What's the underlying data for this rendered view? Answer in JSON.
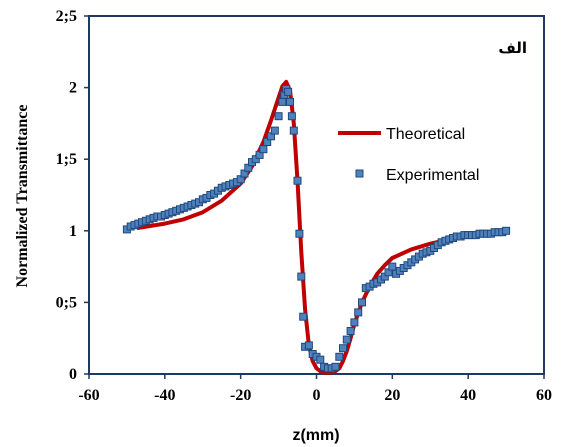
{
  "chart_data": {
    "type": "scatter",
    "panel_label": "الف",
    "xlabel": "z(mm)",
    "ylabel": "Normalized Transmittance",
    "xlim": [
      -60,
      60
    ],
    "ylim": [
      0,
      2.5
    ],
    "x_ticks": [
      -60,
      -40,
      -20,
      0,
      20,
      40,
      60
    ],
    "x_tick_labels": [
      "-60",
      "-40",
      "-20",
      "0",
      "20",
      "40",
      "60"
    ],
    "y_ticks": [
      0,
      0.5,
      1,
      1.5,
      2,
      2.5
    ],
    "y_tick_labels": [
      "0",
      "0;5",
      "1",
      "1;5",
      "2",
      "2;5"
    ],
    "legend_position": "right",
    "series": [
      {
        "name": "Theoretical",
        "kind": "line",
        "color": "#c00000",
        "x": [
          -47,
          -40,
          -35,
          -30,
          -25,
          -20,
          -17,
          -14,
          -12,
          -10,
          -9,
          -8,
          -7,
          -6,
          -5,
          -4,
          -3,
          -2,
          -1,
          0,
          1,
          2,
          3,
          4,
          5,
          6,
          7,
          8,
          9,
          10,
          12,
          14,
          16,
          18,
          20,
          25,
          30,
          35
        ],
        "y": [
          1.02,
          1.05,
          1.08,
          1.13,
          1.21,
          1.33,
          1.45,
          1.62,
          1.77,
          1.93,
          2.01,
          2.04,
          1.98,
          1.75,
          1.35,
          0.85,
          0.45,
          0.2,
          0.09,
          0.04,
          0.02,
          0.01,
          0.01,
          0.01,
          0.02,
          0.04,
          0.09,
          0.16,
          0.25,
          0.35,
          0.5,
          0.61,
          0.7,
          0.76,
          0.81,
          0.87,
          0.91,
          0.94
        ]
      },
      {
        "name": "Experimental",
        "kind": "markers",
        "color": "#4f81bd",
        "x": [
          -50,
          -49,
          -48,
          -47,
          -46,
          -45,
          -44,
          -43,
          -42,
          -41,
          -40,
          -39,
          -38,
          -37,
          -36,
          -35,
          -34,
          -33,
          -32,
          -31,
          -30,
          -29,
          -28,
          -27,
          -26,
          -25,
          -24,
          -23,
          -22,
          -21,
          -20,
          -19,
          -18,
          -17,
          -16,
          -15,
          -14,
          -13,
          -12,
          -11,
          -10,
          -9,
          -8.5,
          -8,
          -7.5,
          -7,
          -6.5,
          -6,
          -5,
          -4.5,
          -4,
          -3.5,
          -3,
          -2,
          -1,
          0,
          1,
          2,
          3,
          4,
          5,
          6,
          7,
          8,
          9,
          10,
          11,
          12,
          13,
          14,
          15,
          16,
          17,
          18,
          19,
          20,
          21,
          22,
          23,
          24,
          25,
          26,
          27,
          28,
          29,
          30,
          31,
          32,
          33,
          34,
          35,
          36,
          37,
          38,
          39,
          40,
          41,
          42,
          43,
          44,
          45,
          46,
          47,
          48,
          49,
          50
        ],
        "y": [
          1.01,
          1.03,
          1.04,
          1.05,
          1.06,
          1.07,
          1.08,
          1.09,
          1.1,
          1.1,
          1.11,
          1.12,
          1.13,
          1.14,
          1.15,
          1.16,
          1.17,
          1.18,
          1.19,
          1.2,
          1.22,
          1.23,
          1.25,
          1.26,
          1.28,
          1.3,
          1.31,
          1.32,
          1.33,
          1.34,
          1.36,
          1.4,
          1.44,
          1.48,
          1.5,
          1.53,
          1.57,
          1.62,
          1.66,
          1.7,
          1.8,
          1.9,
          1.95,
          1.99,
          1.97,
          1.9,
          1.8,
          1.7,
          1.35,
          0.98,
          0.68,
          0.4,
          0.19,
          0.2,
          0.14,
          0.12,
          0.1,
          0.05,
          0.04,
          0.04,
          0.05,
          0.12,
          0.18,
          0.24,
          0.3,
          0.36,
          0.43,
          0.5,
          0.6,
          0.61,
          0.63,
          0.64,
          0.66,
          0.68,
          0.71,
          0.75,
          0.7,
          0.72,
          0.74,
          0.76,
          0.78,
          0.8,
          0.82,
          0.84,
          0.85,
          0.86,
          0.88,
          0.9,
          0.92,
          0.93,
          0.94,
          0.95,
          0.96,
          0.96,
          0.97,
          0.97,
          0.97,
          0.97,
          0.98,
          0.98,
          0.98,
          0.98,
          0.99,
          0.99,
          0.99,
          1.0
        ]
      }
    ]
  }
}
